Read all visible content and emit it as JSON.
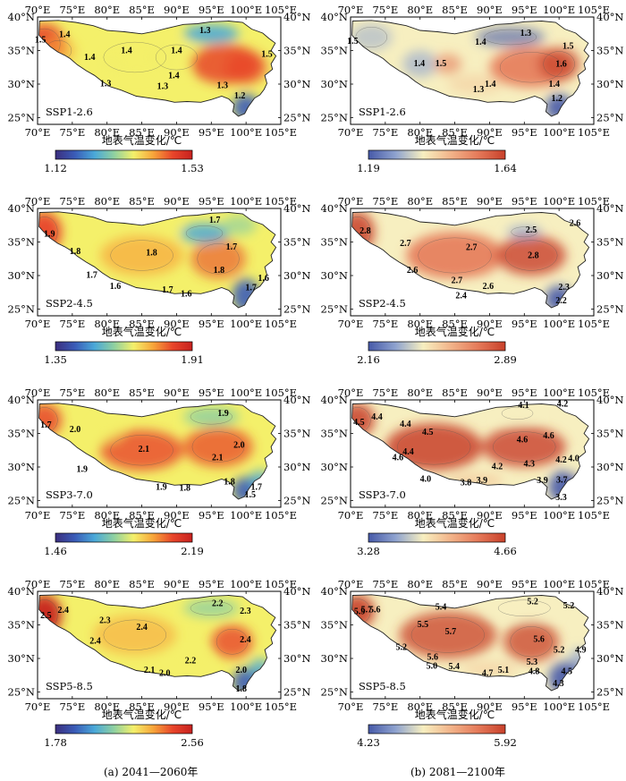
{
  "axes": {
    "lon_ticks": [
      "70°E",
      "75°E",
      "80°E",
      "85°E",
      "90°E",
      "95°E",
      "100°E",
      "105°E"
    ],
    "lat_ticks": [
      "40°N",
      "35°N",
      "30°N",
      "25°N"
    ],
    "lon_range": [
      70,
      105
    ],
    "lat_range": [
      24,
      40
    ]
  },
  "colorbar_title": "地表气温变化/℃",
  "colors": {
    "left_scale": [
      "#3b2e7e",
      "#3a5cb8",
      "#4aa8d8",
      "#8fd0a0",
      "#f4f06a",
      "#f7a53a",
      "#e8452a",
      "#c7211f"
    ],
    "right_scale": [
      "#4659a8",
      "#8fa3cf",
      "#f7efc0",
      "#f2b48a",
      "#e57a5a",
      "#c8402a"
    ]
  },
  "captions": {
    "left": "(a) 2041—2060年",
    "right": "(b) 2081—2100年"
  },
  "panels": [
    {
      "scenario": "SSP1-2.6",
      "period": "2041—2060",
      "scale": "left",
      "min": "1.12",
      "max": "1.53",
      "contours": [
        {
          "text": "1.5",
          "lon": 70.4,
          "lat": 36.2
        },
        {
          "text": "1.4",
          "lon": 73.9,
          "lat": 37.0
        },
        {
          "text": "1.3",
          "lon": 94.1,
          "lat": 37.6
        },
        {
          "text": "1.4",
          "lon": 77.5,
          "lat": 33.6
        },
        {
          "text": "1.4",
          "lon": 82.8,
          "lat": 34.6
        },
        {
          "text": "1.4",
          "lon": 90.0,
          "lat": 34.6
        },
        {
          "text": "1.5",
          "lon": 103.0,
          "lat": 34.1
        },
        {
          "text": "1.3",
          "lon": 79.8,
          "lat": 29.7
        },
        {
          "text": "1.4",
          "lon": 89.6,
          "lat": 30.9
        },
        {
          "text": "1.3",
          "lon": 88.0,
          "lat": 29.3
        },
        {
          "text": "1.3",
          "lon": 96.6,
          "lat": 29.4
        },
        {
          "text": "1.2",
          "lon": 99.1,
          "lat": 27.9
        }
      ]
    },
    {
      "scenario": "SSP1-2.6",
      "period": "2081—2100",
      "scale": "right",
      "min": "1.19",
      "max": "1.64",
      "contours": [
        {
          "text": "1.5",
          "lon": 70.3,
          "lat": 36.0
        },
        {
          "text": "1.3",
          "lon": 95.2,
          "lat": 37.2
        },
        {
          "text": "1.4",
          "lon": 88.7,
          "lat": 35.9
        },
        {
          "text": "1.5",
          "lon": 101.3,
          "lat": 35.3
        },
        {
          "text": "1.4",
          "lon": 79.9,
          "lat": 32.7
        },
        {
          "text": "1.5",
          "lon": 83.0,
          "lat": 32.7
        },
        {
          "text": "1.6",
          "lon": 100.3,
          "lat": 32.6
        },
        {
          "text": "1.4",
          "lon": 90.1,
          "lat": 29.6
        },
        {
          "text": "1.3",
          "lon": 88.4,
          "lat": 28.8
        },
        {
          "text": "1.4",
          "lon": 99.3,
          "lat": 29.6
        },
        {
          "text": "1.2",
          "lon": 99.7,
          "lat": 27.5
        }
      ]
    },
    {
      "scenario": "SSP2-4.5",
      "period": "2041—2060",
      "scale": "left",
      "min": "1.35",
      "max": "1.91",
      "contours": [
        {
          "text": "1.9",
          "lon": 71.7,
          "lat": 35.8
        },
        {
          "text": "1.7",
          "lon": 95.5,
          "lat": 37.9
        },
        {
          "text": "1.8",
          "lon": 75.4,
          "lat": 33.2
        },
        {
          "text": "1.8",
          "lon": 86.4,
          "lat": 33.0
        },
        {
          "text": "1.7",
          "lon": 97.9,
          "lat": 33.9
        },
        {
          "text": "1.7",
          "lon": 77.8,
          "lat": 29.7
        },
        {
          "text": "1.6",
          "lon": 81.2,
          "lat": 28.0
        },
        {
          "text": "1.7",
          "lon": 88.7,
          "lat": 27.5
        },
        {
          "text": "1.6",
          "lon": 91.4,
          "lat": 26.9
        },
        {
          "text": "1.8",
          "lon": 96.1,
          "lat": 30.4
        },
        {
          "text": "1.6",
          "lon": 102.5,
          "lat": 29.2
        },
        {
          "text": "1.7",
          "lon": 100.7,
          "lat": 27.8
        }
      ]
    },
    {
      "scenario": "SSP2-4.5",
      "period": "2081—2100",
      "scale": "right",
      "min": "2.16",
      "max": "2.89",
      "contours": [
        {
          "text": "2.8",
          "lon": 72.1,
          "lat": 36.3
        },
        {
          "text": "2.7",
          "lon": 77.9,
          "lat": 34.4
        },
        {
          "text": "2.5",
          "lon": 96.0,
          "lat": 36.4
        },
        {
          "text": "2.6",
          "lon": 102.3,
          "lat": 37.4
        },
        {
          "text": "2.7",
          "lon": 87.4,
          "lat": 33.8
        },
        {
          "text": "2.8",
          "lon": 96.3,
          "lat": 32.6
        },
        {
          "text": "2.6",
          "lon": 78.9,
          "lat": 30.4
        },
        {
          "text": "2.7",
          "lon": 85.3,
          "lat": 28.9
        },
        {
          "text": "2.6",
          "lon": 89.8,
          "lat": 28.0
        },
        {
          "text": "2.4",
          "lon": 85.9,
          "lat": 26.6
        },
        {
          "text": "2.3",
          "lon": 100.7,
          "lat": 27.9
        },
        {
          "text": "2.2",
          "lon": 100.3,
          "lat": 25.9
        }
      ]
    },
    {
      "scenario": "SSP3-7.0",
      "period": "2041—2060",
      "scale": "left",
      "min": "1.46",
      "max": "2.19",
      "contours": [
        {
          "text": "1.7",
          "lon": 71.2,
          "lat": 35.9
        },
        {
          "text": "2.0",
          "lon": 75.4,
          "lat": 35.2
        },
        {
          "text": "1.9",
          "lon": 96.7,
          "lat": 37.6
        },
        {
          "text": "2.1",
          "lon": 85.3,
          "lat": 32.3
        },
        {
          "text": "2.0",
          "lon": 99.0,
          "lat": 32.9
        },
        {
          "text": "2.1",
          "lon": 95.9,
          "lat": 31.0
        },
        {
          "text": "1.9",
          "lon": 76.4,
          "lat": 29.3
        },
        {
          "text": "1.9",
          "lon": 87.8,
          "lat": 26.6
        },
        {
          "text": "1.8",
          "lon": 91.2,
          "lat": 26.5
        },
        {
          "text": "1.8",
          "lon": 97.6,
          "lat": 27.4
        },
        {
          "text": "1.7",
          "lon": 101.5,
          "lat": 26.6
        },
        {
          "text": "1.5",
          "lon": 100.6,
          "lat": 25.5
        }
      ]
    },
    {
      "scenario": "SSP3-7.0",
      "period": "2081—2100",
      "scale": "right",
      "min": "3.28",
      "max": "4.66",
      "contours": [
        {
          "text": "4.5",
          "lon": 71.2,
          "lat": 36.3
        },
        {
          "text": "4.4",
          "lon": 73.8,
          "lat": 37.1
        },
        {
          "text": "4.1",
          "lon": 94.9,
          "lat": 38.8
        },
        {
          "text": "4.2",
          "lon": 100.5,
          "lat": 39.0
        },
        {
          "text": "4.4",
          "lon": 77.9,
          "lat": 36.0
        },
        {
          "text": "4.5",
          "lon": 81.1,
          "lat": 34.8
        },
        {
          "text": "4.4",
          "lon": 78.3,
          "lat": 31.9
        },
        {
          "text": "4.6",
          "lon": 76.8,
          "lat": 31.0
        },
        {
          "text": "4.6",
          "lon": 94.7,
          "lat": 33.7
        },
        {
          "text": "4.6",
          "lon": 98.5,
          "lat": 34.3
        },
        {
          "text": "4.2",
          "lon": 100.3,
          "lat": 30.7
        },
        {
          "text": "4.0",
          "lon": 102.1,
          "lat": 30.9
        },
        {
          "text": "4.2",
          "lon": 91.1,
          "lat": 29.7
        },
        {
          "text": "4.3",
          "lon": 95.7,
          "lat": 30.1
        },
        {
          "text": "4.0",
          "lon": 80.8,
          "lat": 27.8
        },
        {
          "text": "3.8",
          "lon": 86.6,
          "lat": 27.3
        },
        {
          "text": "3.9",
          "lon": 88.9,
          "lat": 27.6
        },
        {
          "text": "3.9",
          "lon": 97.6,
          "lat": 27.6
        },
        {
          "text": "3.7",
          "lon": 100.4,
          "lat": 27.7
        },
        {
          "text": "3.3",
          "lon": 100.3,
          "lat": 25.1
        }
      ]
    },
    {
      "scenario": "SSP5-8.5",
      "period": "2041—2060",
      "scale": "left",
      "min": "1.78",
      "max": "2.56",
      "contours": [
        {
          "text": "2.5",
          "lon": 71.2,
          "lat": 36.0
        },
        {
          "text": "2.4",
          "lon": 73.7,
          "lat": 36.8
        },
        {
          "text": "2.2",
          "lon": 95.9,
          "lat": 37.8
        },
        {
          "text": "2.3",
          "lon": 99.9,
          "lat": 36.7
        },
        {
          "text": "2.3",
          "lon": 79.7,
          "lat": 35.3
        },
        {
          "text": "2.4",
          "lon": 85.0,
          "lat": 34.3
        },
        {
          "text": "2.4",
          "lon": 78.3,
          "lat": 32.2
        },
        {
          "text": "2.4",
          "lon": 99.9,
          "lat": 32.4
        },
        {
          "text": "2.2",
          "lon": 92.0,
          "lat": 29.3
        },
        {
          "text": "2.1",
          "lon": 86.1,
          "lat": 27.9
        },
        {
          "text": "2.0",
          "lon": 88.3,
          "lat": 27.4
        },
        {
          "text": "2.0",
          "lon": 99.3,
          "lat": 27.9
        },
        {
          "text": "1.8",
          "lon": 99.3,
          "lat": 25.1
        }
      ]
    },
    {
      "scenario": "SSP5-8.5",
      "period": "2081—2100",
      "scale": "right",
      "min": "4.23",
      "max": "5.92",
      "contours": [
        {
          "text": "5.9",
          "lon": 71.3,
          "lat": 36.6
        },
        {
          "text": "5.7",
          "lon": 72.3,
          "lat": 36.9
        },
        {
          "text": "5.6",
          "lon": 73.5,
          "lat": 36.9
        },
        {
          "text": "5.4",
          "lon": 83.0,
          "lat": 37.3
        },
        {
          "text": "5.2",
          "lon": 96.2,
          "lat": 38.1
        },
        {
          "text": "5.2",
          "lon": 101.4,
          "lat": 37.5
        },
        {
          "text": "5.5",
          "lon": 80.4,
          "lat": 34.7
        },
        {
          "text": "5.7",
          "lon": 84.4,
          "lat": 33.6
        },
        {
          "text": "5.6",
          "lon": 97.1,
          "lat": 32.5
        },
        {
          "text": "5.2",
          "lon": 77.3,
          "lat": 31.3
        },
        {
          "text": "5.6",
          "lon": 81.8,
          "lat": 29.8
        },
        {
          "text": "5.3",
          "lon": 96.1,
          "lat": 29.1
        },
        {
          "text": "5.2",
          "lon": 100.0,
          "lat": 30.9
        },
        {
          "text": "4.9",
          "lon": 103.1,
          "lat": 30.9
        },
        {
          "text": "5.0",
          "lon": 81.7,
          "lat": 28.5
        },
        {
          "text": "5.4",
          "lon": 84.9,
          "lat": 28.4
        },
        {
          "text": "4.7",
          "lon": 89.7,
          "lat": 27.4
        },
        {
          "text": "5.1",
          "lon": 92.0,
          "lat": 27.9
        },
        {
          "text": "4.8",
          "lon": 96.4,
          "lat": 27.7
        },
        {
          "text": "4.5",
          "lon": 101.1,
          "lat": 27.7
        },
        {
          "text": "4.3",
          "lon": 99.9,
          "lat": 25.9
        }
      ]
    }
  ]
}
